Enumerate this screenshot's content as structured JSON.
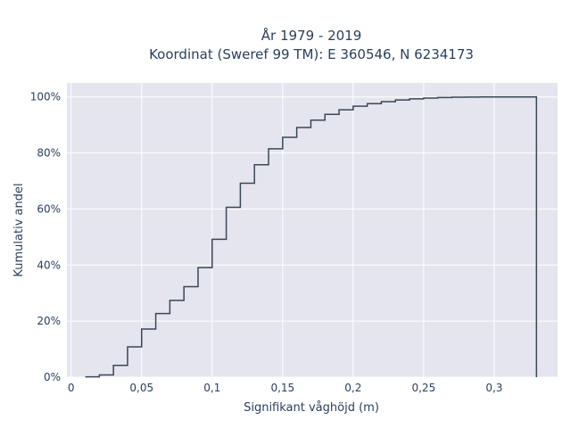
{
  "chart_data": {
    "type": "line",
    "line_shape": "step-after (cumulative distribution)",
    "title_line1": "År 1979 - 2019",
    "title_line2": "Koordinat (Sweref 99 TM): E 360546, N 6234173",
    "xlabel": "Signifikant våghöjd (m)",
    "ylabel": "Kumulativ andel",
    "xlim": [
      -0.003,
      0.345
    ],
    "ylim": [
      0,
      1.05
    ],
    "x_ticks": [
      0,
      0.05,
      0.1,
      0.15,
      0.2,
      0.25,
      0.3
    ],
    "x_tick_labels": [
      "0",
      "0,05",
      "0,1",
      "0,15",
      "0,2",
      "0,25",
      "0,3"
    ],
    "y_ticks": [
      0,
      0.2,
      0.4,
      0.6,
      0.8,
      1.0
    ],
    "y_tick_labels": [
      "0%",
      "20%",
      "40%",
      "60%",
      "80%",
      "100%"
    ],
    "grid": true,
    "background_color": "#e5e5ef",
    "line_color": "#3b4655",
    "x": [
      0.01,
      0.02,
      0.03,
      0.04,
      0.05,
      0.06,
      0.07,
      0.08,
      0.09,
      0.1,
      0.11,
      0.12,
      0.13,
      0.14,
      0.15,
      0.16,
      0.17,
      0.18,
      0.19,
      0.2,
      0.21,
      0.22,
      0.23,
      0.24,
      0.25,
      0.26,
      0.27,
      0.28,
      0.29,
      0.3,
      0.31,
      0.32,
      0.33
    ],
    "y": [
      0.001,
      0.008,
      0.042,
      0.108,
      0.172,
      0.227,
      0.274,
      0.323,
      0.391,
      0.492,
      0.606,
      0.692,
      0.758,
      0.815,
      0.856,
      0.891,
      0.917,
      0.938,
      0.954,
      0.967,
      0.976,
      0.983,
      0.989,
      0.993,
      0.996,
      0.998,
      0.999,
      0.9995,
      0.9998,
      1.0,
      1.0,
      1.0,
      0.0
    ]
  }
}
